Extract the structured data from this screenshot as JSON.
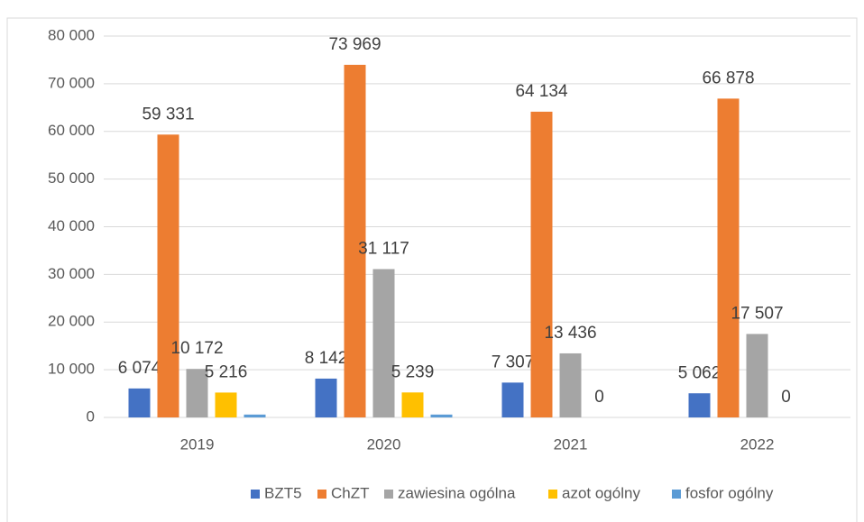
{
  "chart_data": {
    "type": "bar",
    "categories": [
      "2019",
      "2020",
      "2021",
      "2022"
    ],
    "series": [
      {
        "name": "BZT5",
        "color": "#4472c4",
        "values": [
          6074,
          8142,
          7307,
          5062
        ],
        "value_labels": [
          "6 074",
          "8 142",
          "7 307",
          "5 062"
        ]
      },
      {
        "name": "ChZT",
        "color": "#ed7d31",
        "values": [
          59331,
          73969,
          64134,
          66878
        ],
        "value_labels": [
          "59 331",
          "73 969",
          "64 134",
          "66 878"
        ]
      },
      {
        "name": "zawiesina ogólna",
        "color": "#a5a5a5",
        "values": [
          10172,
          31117,
          13436,
          17507
        ],
        "value_labels": [
          "10 172",
          "31 117",
          "13 436",
          "17 507"
        ]
      },
      {
        "name": "azot ogólny",
        "color": "#ffc000",
        "values": [
          5216,
          5239,
          0,
          0
        ],
        "value_labels": [
          "5 216",
          "5 239",
          "0",
          "0"
        ]
      },
      {
        "name": "fosfor ogólny",
        "color": "#5b9bd5",
        "values": [
          600,
          600,
          null,
          null
        ]
      }
    ],
    "ylim": [
      0,
      80000
    ],
    "yticks": [
      0,
      {
        "value": 10000,
        "label": "10 000"
      },
      {
        "value": 20000,
        "label": "20 000"
      },
      {
        "value": 30000,
        "label": "30 000"
      },
      {
        "value": 40000,
        "label": "40 000"
      },
      {
        "value": 50000,
        "label": "50 000"
      },
      {
        "value": 60000,
        "label": "60 000"
      },
      {
        "value": 70000,
        "label": "70 000"
      },
      {
        "value": 80000,
        "label": "80 000"
      }
    ],
    "grid": true,
    "legend": "bottom"
  }
}
